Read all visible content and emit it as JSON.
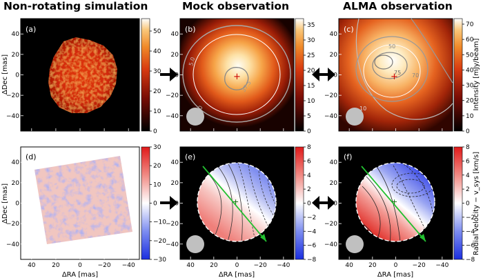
{
  "titles": {
    "left": "Non-rotating simulation",
    "middle": "Mock observation",
    "right": "ALMA observation"
  },
  "panels": {
    "a": "(a)",
    "b": "(b)",
    "c": "(c)",
    "d": "(d)",
    "e": "(e)",
    "f": "(f)"
  },
  "axes": {
    "ylabel": "ΔDec [mas]",
    "xlabel": "ΔRA [mas]",
    "yticks": [
      "40",
      "20",
      "0",
      "−20",
      "−40"
    ],
    "xticks": [
      "40",
      "20",
      "0",
      "−20",
      "−40"
    ]
  },
  "colorbars": {
    "a": [
      "50",
      "40",
      "30",
      "20",
      "10",
      "0"
    ],
    "b": [
      "35",
      "30",
      "25",
      "20",
      "15",
      "10",
      "5",
      "0"
    ],
    "c": [
      "70",
      "60",
      "50",
      "40",
      "30",
      "20",
      "10",
      "0"
    ],
    "d": [
      "30",
      "20",
      "10",
      "0",
      "−10",
      "−20",
      "−30"
    ],
    "e": [
      "8",
      "6",
      "4",
      "2",
      "0",
      "−2",
      "−4",
      "−6",
      "−8"
    ],
    "f": [
      "8",
      "6",
      "4",
      "2",
      "0",
      "−2",
      "−4",
      "−6",
      "−8"
    ]
  },
  "colorbar_labels": {
    "intensity": "Intensity [mJy/beam]",
    "velocity": "Radial velocity − v_sys [km/s]"
  },
  "contour_labels": {
    "b": [
      "5.0",
      "37.5",
      "10"
    ],
    "c": [
      "50",
      "75",
      "70",
      "10"
    ]
  },
  "colors": {
    "hot_background": "#000000",
    "marker_plus": "#cc0000",
    "velocity_arrow": "#22c030",
    "beam": "#c0c0c0"
  }
}
